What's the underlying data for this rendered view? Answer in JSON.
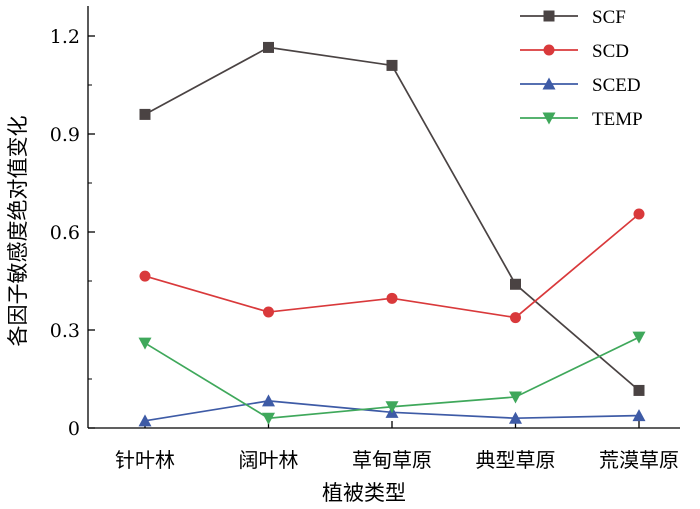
{
  "chart_data": {
    "type": "line",
    "xlabel": "植被类型",
    "ylabel": "各因子敏感度绝对值变化",
    "categories": [
      "针叶林",
      "阔叶林",
      "草甸草原",
      "典型草原",
      "荒漠草原"
    ],
    "ylim": [
      0,
      1.3
    ],
    "yticks": [
      "0",
      "0.3",
      "0.6",
      "0.9",
      "1.2"
    ],
    "ytick_values": [
      0,
      0.3,
      0.6,
      0.9,
      1.2
    ],
    "legend_position": "top-right",
    "grid": false,
    "series": [
      {
        "name": "SCF",
        "color": "#4a4343",
        "marker": "square",
        "values": [
          0.96,
          1.165,
          1.11,
          0.44,
          0.115
        ]
      },
      {
        "name": "SCD",
        "color": "#d9393b",
        "marker": "circle",
        "values": [
          0.465,
          0.355,
          0.397,
          0.338,
          0.655
        ]
      },
      {
        "name": "SCED",
        "color": "#3e5ba6",
        "marker": "triangle-up",
        "values": [
          0.022,
          0.083,
          0.048,
          0.03,
          0.038
        ]
      },
      {
        "name": "TEMP",
        "color": "#3fa85b",
        "marker": "triangle-down",
        "values": [
          0.26,
          0.03,
          0.065,
          0.095,
          0.278
        ]
      }
    ]
  }
}
